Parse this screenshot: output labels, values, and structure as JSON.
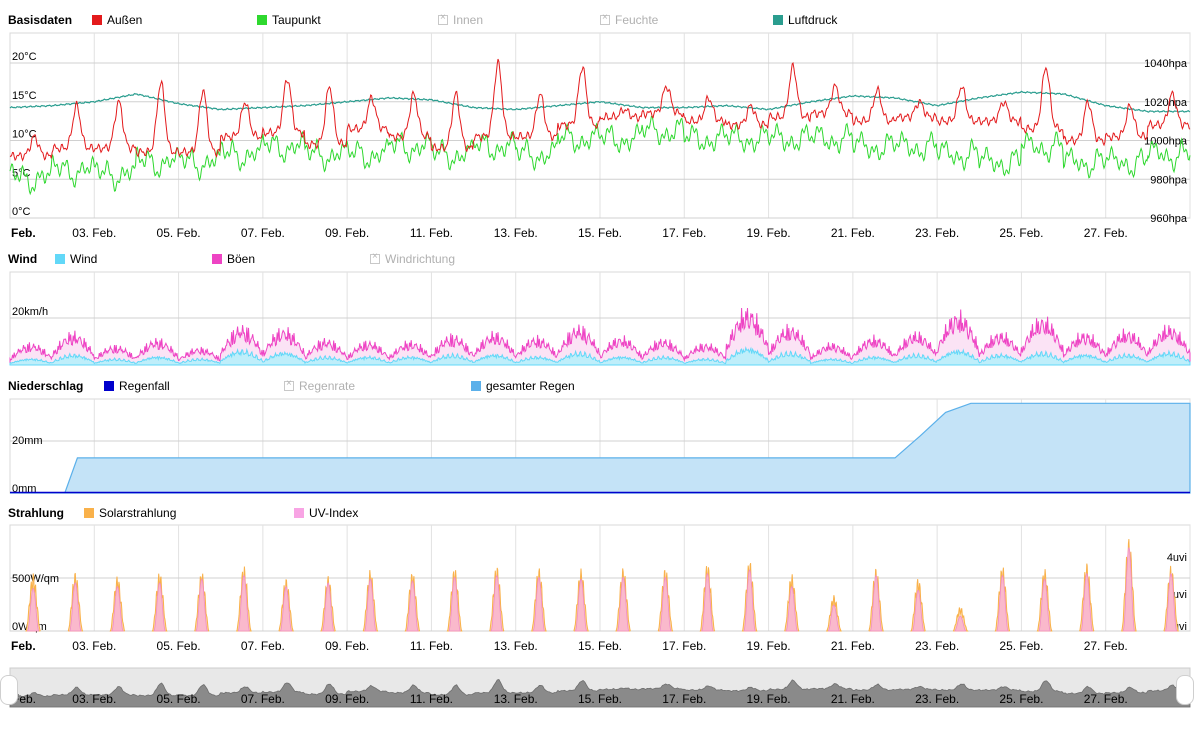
{
  "chart_data": [
    {
      "type": "line",
      "title": "Basisdaten",
      "y_left_ticks": [
        "20°C",
        "15°C",
        "10°C",
        "5°C",
        "0°C"
      ],
      "y_left_range": [
        0,
        20
      ],
      "y_right_ticks": [
        "1040hpa",
        "1020hpa",
        "1000hpa",
        "980hpa",
        "960hpa"
      ],
      "y_right_range": [
        960,
        1040
      ],
      "x_ticks": [
        "Feb.",
        "03. Feb.",
        "05. Feb.",
        "07. Feb.",
        "09. Feb.",
        "11. Feb.",
        "13. Feb.",
        "15. Feb.",
        "17. Feb.",
        "19. Feb.",
        "21. Feb.",
        "23. Feb.",
        "25. Feb.",
        "27. Feb."
      ],
      "x_range_days": [
        1,
        29
      ],
      "legend": [
        {
          "name": "Außen",
          "color": "#e31a1c",
          "visible": true
        },
        {
          "name": "Taupunkt",
          "color": "#2ed82e",
          "visible": true
        },
        {
          "name": "Innen",
          "color": "#cccccc",
          "visible": false
        },
        {
          "name": "Feuchte",
          "color": "#cccccc",
          "visible": false
        },
        {
          "name": "Luftdruck",
          "color": "#2a9d8f",
          "visible": true
        }
      ],
      "series": [
        {
          "name": "Außen",
          "unit": "°C",
          "day_max": [
            10.5,
            14.5,
            15,
            17.5,
            16.5,
            15,
            18,
            17,
            15.5,
            16,
            16,
            20,
            16,
            19.5,
            14,
            17,
            15.5,
            14.5,
            19.5,
            17,
            16.5,
            15,
            17,
            15,
            19.5,
            15,
            14.5,
            16
          ],
          "day_min": [
            8,
            9,
            9,
            8.5,
            8.5,
            10.5,
            11,
            9.5,
            11.5,
            10.5,
            9,
            10.5,
            10.5,
            12,
            13,
            13.5,
            12.5,
            12,
            13,
            13.5,
            12.5,
            13,
            12.5,
            12.5,
            11.5,
            10,
            10.5,
            12
          ]
        },
        {
          "name": "Taupunkt",
          "unit": "°C",
          "day_max": [
            8,
            9,
            8.5,
            10,
            10,
            11,
            12,
            11,
            11,
            12,
            11,
            12,
            11,
            13,
            13,
            14,
            13,
            13,
            13,
            13,
            12,
            12,
            11,
            10,
            12,
            10,
            10,
            11
          ]
        },
        {
          "name": "Luftdruck",
          "unit": "hpa",
          "values": [
            1017,
            1018,
            1020,
            1024,
            1019,
            1016,
            1017,
            1018,
            1020,
            1022,
            1021,
            1017,
            1016,
            1018,
            1020,
            1017,
            1017,
            1018,
            1016,
            1020,
            1023,
            1022,
            1018,
            1022,
            1025,
            1024,
            1018,
            1015
          ]
        }
      ]
    },
    {
      "type": "area",
      "title": "Wind",
      "y_ticks": [
        "20km/h",
        "0km/h"
      ],
      "y_range": [
        0,
        20
      ],
      "legend": [
        {
          "name": "Wind",
          "color": "#62d8f8",
          "visible": true
        },
        {
          "name": "Böen",
          "color": "#ee44c4",
          "visible": true
        },
        {
          "name": "Windrichtung",
          "color": "#cccccc",
          "visible": false
        }
      ],
      "series": [
        {
          "name": "Böen",
          "unit": "km/h",
          "day_max": [
            10,
            15,
            9,
            12,
            8,
            18,
            17,
            12,
            11,
            11,
            14,
            15,
            13,
            18,
            13,
            12,
            10,
            26,
            18,
            10,
            13,
            15,
            24,
            15,
            22,
            15,
            16,
            18
          ]
        },
        {
          "name": "Wind",
          "unit": "km/h",
          "day_max": [
            3,
            5,
            3,
            4,
            3,
            7,
            6,
            4,
            4,
            4,
            5,
            5,
            4,
            6,
            4,
            4,
            3,
            8,
            6,
            3,
            4,
            5,
            7,
            5,
            6,
            5,
            5,
            6
          ]
        }
      ]
    },
    {
      "type": "area",
      "title": "Niederschlag",
      "y_ticks": [
        "20mm",
        "0mm"
      ],
      "y_range": [
        0,
        40
      ],
      "legend": [
        {
          "name": "Regenfall",
          "color": "#0000cc",
          "visible": true
        },
        {
          "name": "Regenrate",
          "color": "#cccccc",
          "visible": false
        },
        {
          "name": "gesamter Regen",
          "color": "#5bb0ea",
          "visible": true
        }
      ],
      "series": [
        {
          "name": "gesamter Regen",
          "unit": "mm",
          "points": [
            [
              1,
              0
            ],
            [
              2.3,
              0
            ],
            [
              2.6,
              13.5
            ],
            [
              22,
              13.5
            ],
            [
              22.6,
              22
            ],
            [
              23.2,
              31
            ],
            [
              23.8,
              34.5
            ],
            [
              29,
              34.5
            ]
          ]
        }
      ]
    },
    {
      "type": "area",
      "title": "Strahlung",
      "y_left_ticks": [
        "500W/qm",
        "0W/qm"
      ],
      "y_left_range": [
        0,
        1000
      ],
      "y_right_ticks": [
        "4uvi",
        "2uvi",
        "0uvi"
      ],
      "y_right_range": [
        0,
        5.6
      ],
      "x_ticks": [
        "Feb.",
        "03. Feb.",
        "05. Feb.",
        "07. Feb.",
        "09. Feb.",
        "11. Feb.",
        "13. Feb.",
        "15. Feb.",
        "17. Feb.",
        "19. Feb.",
        "21. Feb.",
        "23. Feb.",
        "25. Feb.",
        "27. Feb."
      ],
      "legend": [
        {
          "name": "Solarstrahlung",
          "color": "#f9b14a",
          "visible": true
        },
        {
          "name": "UV-Index",
          "color": "#f8a4e4",
          "visible": true
        }
      ],
      "series": [
        {
          "name": "Solarstrahlung",
          "unit": "W/qm",
          "day_peak": [
            550,
            560,
            520,
            560,
            560,
            620,
            500,
            520,
            580,
            560,
            600,
            620,
            600,
            590,
            600,
            600,
            640,
            670,
            540,
            340,
            600,
            500,
            230,
            620,
            590,
            650,
            880,
            620
          ]
        },
        {
          "name": "UV-Index",
          "unit": "uvi",
          "day_peak": [
            2.3,
            2.6,
            2.4,
            2.6,
            2.8,
            3.0,
            2.4,
            2.6,
            2.8,
            2.7,
            2.9,
            3.0,
            2.9,
            2.8,
            2.9,
            2.9,
            3.1,
            3.3,
            2.4,
            1.4,
            3.0,
            2.2,
            0.8,
            3.0,
            2.8,
            3.1,
            4.5,
            3.1
          ]
        }
      ]
    }
  ],
  "navigator": {
    "x_ticks": [
      "Feb.",
      "03. Feb.",
      "05. Feb.",
      "07. Feb.",
      "09. Feb.",
      "11. Feb.",
      "13. Feb.",
      "15. Feb.",
      "17. Feb.",
      "19. Feb.",
      "21. Feb.",
      "23. Feb.",
      "25. Feb.",
      "27. Feb."
    ]
  }
}
